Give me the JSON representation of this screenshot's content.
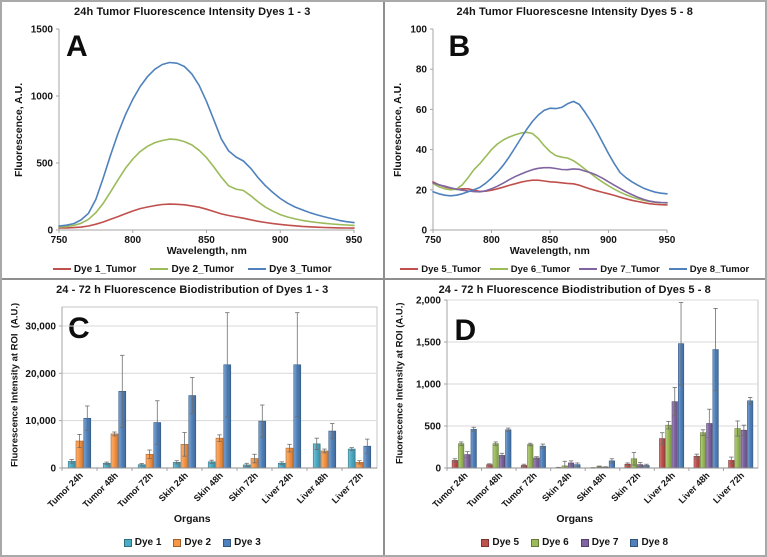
{
  "figure_name": "24h fluorescence four panel figure",
  "chart_data": [
    {
      "type": "line",
      "panel_letter": "A",
      "title": "24h Tumor Fluorescence Intensity Dyes 1 - 3",
      "xlabel": "Wavelength, nm",
      "ylabel": "Fluorescence, A.U.",
      "xlim": [
        750,
        950
      ],
      "ylim": [
        0,
        1500
      ],
      "x_ticks": [
        {
          "v": 750,
          "label": "750"
        },
        {
          "v": 800,
          "label": "800"
        },
        {
          "v": 850,
          "label": "850"
        },
        {
          "v": 900,
          "label": "900"
        },
        {
          "v": 950,
          "label": "950"
        }
      ],
      "y_ticks": [
        {
          "v": 0,
          "label": "0"
        },
        {
          "v": 500,
          "label": "500"
        },
        {
          "v": 1000,
          "label": "1000"
        },
        {
          "v": 1500,
          "label": "1500"
        }
      ],
      "grid": false,
      "legend_position": "bottom",
      "x_start": 750,
      "x_step": 5,
      "series": [
        {
          "name": "Dye 1_Tumor",
          "color": "#C0504D",
          "y": [
            15,
            16,
            18,
            22,
            30,
            43,
            60,
            80,
            100,
            122,
            142,
            160,
            172,
            182,
            190,
            193,
            192,
            188,
            180,
            170,
            155,
            138,
            120,
            108,
            98,
            88,
            76,
            65,
            56,
            48,
            42,
            36,
            31,
            27,
            24,
            21,
            19,
            17,
            16,
            15,
            14
          ]
        },
        {
          "name": "Dye 2_Tumor",
          "color": "#9BBB59",
          "y": [
            22,
            26,
            34,
            50,
            80,
            130,
            200,
            285,
            375,
            460,
            530,
            585,
            625,
            652,
            668,
            678,
            675,
            660,
            635,
            595,
            540,
            470,
            395,
            330,
            305,
            295,
            255,
            210,
            170,
            140,
            115,
            97,
            83,
            72,
            63,
            56,
            50,
            45,
            40,
            37,
            34
          ]
        },
        {
          "name": "Dye 3_Tumor",
          "color": "#4F81BD",
          "y": [
            30,
            36,
            48,
            75,
            125,
            230,
            390,
            560,
            720,
            860,
            975,
            1070,
            1145,
            1200,
            1235,
            1250,
            1245,
            1220,
            1165,
            1080,
            960,
            820,
            680,
            590,
            545,
            515,
            460,
            390,
            330,
            280,
            235,
            200,
            172,
            150,
            130,
            113,
            98,
            85,
            72,
            62,
            55
          ]
        }
      ]
    },
    {
      "type": "line",
      "panel_letter": "B",
      "title": "24h Tumor Fluorescesne Intensity Dyes 5 - 8",
      "xlabel": "Wavelength, nm",
      "ylabel": "Fluorescence, A.U.",
      "xlim": [
        750,
        950
      ],
      "ylim": [
        0,
        100
      ],
      "x_ticks": [
        {
          "v": 750,
          "label": "750"
        },
        {
          "v": 800,
          "label": "800"
        },
        {
          "v": 850,
          "label": "850"
        },
        {
          "v": 900,
          "label": "900"
        },
        {
          "v": 950,
          "label": "950"
        }
      ],
      "y_ticks": [
        {
          "v": 0,
          "label": "0"
        },
        {
          "v": 20,
          "label": "20"
        },
        {
          "v": 40,
          "label": "40"
        },
        {
          "v": 60,
          "label": "60"
        },
        {
          "v": 80,
          "label": "80"
        },
        {
          "v": 100,
          "label": "100"
        }
      ],
      "grid": false,
      "legend_position": "bottom",
      "x_start": 750,
      "x_step": 5,
      "series": [
        {
          "name": "Dye 5_Tumor",
          "color": "#C0504D",
          "y": [
            24,
            22.5,
            21.5,
            20.8,
            20.2,
            20.5,
            20.5,
            19.8,
            19.2,
            19.3,
            19.8,
            20.5,
            21.3,
            22.2,
            23,
            23.8,
            24.4,
            24.8,
            24.8,
            24.4,
            24,
            23.8,
            23.5,
            23.2,
            23,
            22.3,
            21.3,
            20.3,
            19.5,
            18.7,
            18,
            17.2,
            16.3,
            15.5,
            14.8,
            14.2,
            13.6,
            13.1,
            12.8,
            12.6,
            12.5
          ]
        },
        {
          "name": "Dye 6_Tumor",
          "color": "#9BBB59",
          "y": [
            23.2,
            21.5,
            20.5,
            20,
            20.3,
            22.5,
            26,
            30,
            33,
            36.5,
            40,
            42.8,
            44.8,
            46.2,
            47.3,
            48.2,
            48.6,
            48,
            45.5,
            42,
            39,
            37,
            36.2,
            35.8,
            34.5,
            32.5,
            30.2,
            28,
            25.8,
            23.8,
            22,
            20.3,
            18.8,
            17.5,
            16.4,
            15.5,
            14.8,
            14.2,
            13.8,
            13.6,
            13.5
          ]
        },
        {
          "name": "Dye 7_Tumor",
          "color": "#8064A2",
          "y": [
            23.5,
            22.5,
            21.8,
            21,
            20.3,
            19.8,
            19.4,
            19.1,
            19,
            19.5,
            20.5,
            21.8,
            23.3,
            25,
            26.5,
            27.8,
            29,
            30,
            30.7,
            31,
            31,
            30.6,
            30.1,
            30,
            30.4,
            30.2,
            29.3,
            28.4,
            27.2,
            25.7,
            24,
            22.3,
            20.6,
            19,
            17.6,
            16.3,
            15.2,
            14.4,
            13.9,
            13.7,
            13.6
          ]
        },
        {
          "name": "Dye 8_Tumor",
          "color": "#4F81BD",
          "y": [
            19,
            18,
            17.3,
            17,
            17.3,
            18,
            19,
            20,
            21.2,
            23.3,
            25.8,
            28.8,
            32.2,
            36.2,
            40.8,
            45.5,
            50,
            54,
            57.2,
            59.5,
            60.6,
            60.4,
            61,
            62.8,
            64,
            62.5,
            58.5,
            54,
            49,
            43.5,
            38,
            33,
            28.5,
            26,
            24,
            22.3,
            20.8,
            19.7,
            18.8,
            18.3,
            18
          ]
        }
      ]
    },
    {
      "type": "bar",
      "panel_letter": "C",
      "title": "24 - 72 h Fluorescence Biodistribution of Dyes 1 - 3",
      "xlabel": "Organs",
      "ylabel": "Fluorescence Intensity at ROI  (A.U.)",
      "ylim": [
        0,
        34000
      ],
      "y_ticks": [
        {
          "v": 0,
          "label": "0"
        },
        {
          "v": 10000,
          "label": "10,000"
        },
        {
          "v": 20000,
          "label": "20,000"
        },
        {
          "v": 30000,
          "label": "30,000"
        }
      ],
      "grid": true,
      "legend_position": "bottom",
      "categories": [
        "Tumor 24h",
        "Tumor 48h",
        "Tumor 72h",
        "Skin 24h",
        "Skin 48h",
        "Skin 72h",
        "Liver 24h",
        "Liver 48h",
        "Liver 72h"
      ],
      "series": [
        {
          "name": "Dye 1",
          "color": "#4BACC6",
          "values": [
            1400,
            1000,
            700,
            1200,
            1300,
            650,
            1000,
            5100,
            4000
          ],
          "errors": [
            400,
            250,
            250,
            350,
            350,
            350,
            300,
            1200,
            300
          ]
        },
        {
          "name": "Dye 2",
          "color": "#F79646",
          "values": [
            5700,
            7200,
            2900,
            5000,
            6300,
            2000,
            4200,
            3600,
            1200
          ],
          "errors": [
            1400,
            400,
            900,
            2500,
            700,
            900,
            800,
            400,
            350
          ]
        },
        {
          "name": "Dye 3",
          "color": "#4F81BD",
          "values": [
            10500,
            16200,
            9600,
            15300,
            21800,
            9900,
            21800,
            7800,
            4600
          ],
          "errors": [
            2600,
            7600,
            4600,
            3800,
            11000,
            3400,
            11000,
            1600,
            1500
          ]
        }
      ]
    },
    {
      "type": "bar",
      "panel_letter": "D",
      "title": "24 - 72 h Fluorescence Biodistribution of Dyes 5 - 8",
      "xlabel": "Organs",
      "ylabel": "Fluorescence Intensity at ROI (A.U.)",
      "ylim": [
        0,
        2000
      ],
      "y_ticks": [
        {
          "v": 0,
          "label": "0"
        },
        {
          "v": 500,
          "label": "500"
        },
        {
          "v": 1000,
          "label": "1,000"
        },
        {
          "v": 1500,
          "label": "1,500"
        },
        {
          "v": 2000,
          "label": "2,000"
        }
      ],
      "grid": true,
      "legend_position": "bottom",
      "categories": [
        "Tumor 24h",
        "Tumor 48h",
        "Tumor 72h",
        "Skin 24h",
        "Skin 48h",
        "Skin 72h",
        "Liver 24h",
        "Liver 48h",
        "Liver 72h"
      ],
      "series": [
        {
          "name": "Dye 5",
          "color": "#C0504D",
          "values": [
            90,
            40,
            30,
            5,
            3,
            45,
            350,
            140,
            90
          ],
          "errors": [
            20,
            10,
            15,
            3,
            2,
            15,
            70,
            25,
            40
          ]
        },
        {
          "name": "Dye 6",
          "color": "#9BBB59",
          "values": [
            290,
            290,
            280,
            25,
            15,
            110,
            510,
            420,
            470
          ],
          "errors": [
            20,
            20,
            15,
            55,
            8,
            75,
            45,
            35,
            90
          ]
        },
        {
          "name": "Dye 7",
          "color": "#8064A2",
          "values": [
            160,
            150,
            120,
            60,
            10,
            40,
            790,
            530,
            450
          ],
          "errors": [
            35,
            25,
            15,
            25,
            5,
            25,
            170,
            170,
            60
          ]
        },
        {
          "name": "Dye 8",
          "color": "#4F81BD",
          "values": [
            460,
            455,
            260,
            40,
            85,
            30,
            1480,
            1410,
            800
          ],
          "errors": [
            25,
            20,
            25,
            20,
            25,
            15,
            490,
            490,
            40
          ]
        }
      ]
    }
  ]
}
